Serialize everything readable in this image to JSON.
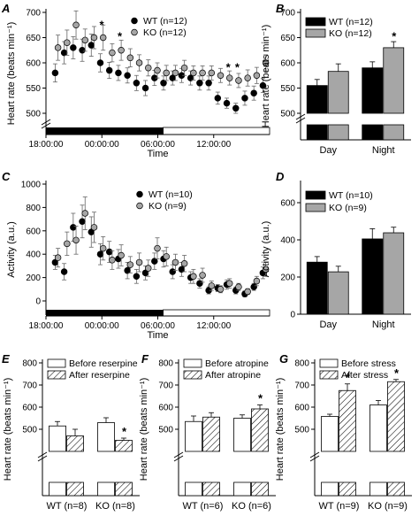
{
  "chart_data": [
    {
      "panel": "A",
      "type": "scatter",
      "xlabel": "Time",
      "ylabel": "Heart rate (beats min⁻¹)",
      "ylim": [
        500,
        700
      ],
      "yticks": [
        "500",
        "550",
        "600",
        "650",
        "700"
      ],
      "xticks": [
        "18:00:00",
        "00:00:00",
        "06:00:00",
        "12:00:00"
      ],
      "series": [
        {
          "name": "WT (n=12)",
          "marker": "black",
          "x": [
            0,
            1,
            2,
            3,
            4,
            5,
            6,
            7,
            8,
            9,
            10,
            11,
            12,
            13,
            14,
            15,
            16,
            17,
            18,
            19,
            20,
            21,
            22,
            23
          ],
          "values": [
            580,
            620,
            630,
            625,
            635,
            600,
            585,
            580,
            575,
            560,
            550,
            570,
            560,
            570,
            575,
            570,
            560,
            560,
            530,
            520,
            510,
            530,
            540,
            555
          ],
          "err": [
            18,
            22,
            22,
            22,
            22,
            18,
            16,
            15,
            15,
            15,
            15,
            15,
            14,
            14,
            14,
            14,
            14,
            14,
            12,
            10,
            10,
            14,
            14,
            14
          ]
        },
        {
          "name": "KO (n=12)",
          "marker": "grey",
          "x": [
            0,
            1,
            2,
            3,
            4,
            5,
            6,
            7,
            8,
            9,
            10,
            11,
            12,
            13,
            14,
            15,
            16,
            17,
            18,
            19,
            20,
            21,
            22,
            23
          ],
          "values": [
            630,
            640,
            675,
            645,
            650,
            650,
            620,
            625,
            610,
            600,
            590,
            585,
            580,
            580,
            590,
            580,
            580,
            580,
            575,
            570,
            565,
            570,
            575,
            600
          ],
          "err": [
            25,
            25,
            28,
            22,
            22,
            25,
            18,
            20,
            18,
            16,
            16,
            15,
            15,
            15,
            15,
            14,
            14,
            14,
            14,
            14,
            14,
            16,
            16,
            16
          ]
        }
      ],
      "annotations": [
        "*",
        "*",
        "*",
        "*"
      ]
    },
    {
      "panel": "B",
      "type": "bar",
      "ylabel": "Heart rate (beats min⁻¹)",
      "categories": [
        "Day",
        "Night"
      ],
      "ylim": [
        500,
        700
      ],
      "yticks": [
        "500",
        "550",
        "600",
        "650",
        "700"
      ],
      "series": [
        {
          "name": "WT (n=12)",
          "color": "#000000",
          "values": [
            555,
            590
          ],
          "err": [
            12,
            12
          ]
        },
        {
          "name": "KO (n=12)",
          "color": "#a6a6a6",
          "values": [
            583,
            630
          ],
          "err": [
            15,
            12
          ]
        }
      ],
      "annotations": [
        "*"
      ]
    },
    {
      "panel": "C",
      "type": "scatter",
      "xlabel": "Time",
      "ylabel": "Activity (a.u.)",
      "ylim": [
        0,
        1000
      ],
      "yticks": [
        "0",
        "200",
        "400",
        "600",
        "800",
        "1000"
      ],
      "xticks": [
        "18:00:00",
        "00:00:00",
        "06:00:00",
        "12:00:00"
      ],
      "series": [
        {
          "name": "WT (n=10)",
          "marker": "black",
          "x": [
            0,
            1,
            2,
            3,
            4,
            5,
            6,
            7,
            8,
            9,
            10,
            11,
            12,
            13,
            14,
            15,
            16,
            17,
            18,
            19,
            20,
            21,
            22,
            23
          ],
          "values": [
            330,
            250,
            630,
            680,
            590,
            400,
            420,
            360,
            260,
            210,
            240,
            340,
            360,
            250,
            270,
            200,
            150,
            90,
            110,
            140,
            90,
            60,
            120,
            240
          ],
          "err": [
            60,
            70,
            120,
            140,
            130,
            90,
            90,
            80,
            70,
            60,
            60,
            70,
            70,
            60,
            60,
            50,
            40,
            30,
            30,
            40,
            30,
            25,
            30,
            50
          ]
        },
        {
          "name": "KO (n=9)",
          "marker": "grey",
          "x": [
            0,
            1,
            2,
            3,
            4,
            5,
            6,
            7,
            8,
            9,
            10,
            11,
            12,
            13,
            14,
            15,
            16,
            17,
            18,
            19,
            20,
            21,
            22,
            23
          ],
          "values": [
            370,
            490,
            520,
            750,
            630,
            450,
            350,
            390,
            310,
            330,
            280,
            450,
            380,
            330,
            320,
            210,
            220,
            130,
            100,
            150,
            120,
            80,
            170,
            270
          ],
          "err": [
            80,
            100,
            120,
            140,
            130,
            100,
            80,
            90,
            70,
            80,
            70,
            90,
            80,
            70,
            70,
            60,
            60,
            40,
            30,
            40,
            30,
            25,
            40,
            60
          ]
        }
      ]
    },
    {
      "panel": "D",
      "type": "bar",
      "ylabel": "Activity (a.u.)",
      "categories": [
        "Day",
        "Night"
      ],
      "ylim": [
        0,
        700
      ],
      "yticks": [
        "0",
        "200",
        "400",
        "600"
      ],
      "series": [
        {
          "name": "WT (n=10)",
          "color": "#000000",
          "values": [
            280,
            405
          ],
          "err": [
            30,
            55
          ]
        },
        {
          "name": "KO (n=9)",
          "color": "#a6a6a6",
          "values": [
            228,
            438
          ],
          "err": [
            30,
            30
          ]
        }
      ]
    },
    {
      "panel": "E",
      "type": "bar",
      "ylabel": "Heart rate (beats min⁻¹)",
      "categories": [
        "WT (n=8)",
        "KO (n=8)"
      ],
      "ylim": [
        400,
        800
      ],
      "yticks": [
        "500",
        "600",
        "700",
        "800"
      ],
      "series": [
        {
          "name": "Before reserpine",
          "fill": "white",
          "values": [
            515,
            530
          ],
          "err": [
            20,
            22
          ]
        },
        {
          "name": "After reserpine",
          "fill": "hatch",
          "values": [
            470,
            450
          ],
          "err": [
            30,
            10
          ]
        }
      ],
      "annotations": [
        "*"
      ]
    },
    {
      "panel": "F",
      "type": "bar",
      "ylabel": "Heart rate (beats min⁻¹)",
      "categories": [
        "WT (n=6)",
        "KO (n=6)"
      ],
      "ylim": [
        400,
        800
      ],
      "yticks": [
        "500",
        "600",
        "700",
        "800"
      ],
      "series": [
        {
          "name": "Before atropine",
          "fill": "white",
          "values": [
            535,
            550
          ],
          "err": [
            25,
            15
          ]
        },
        {
          "name": "After atropine",
          "fill": "hatch",
          "values": [
            555,
            592
          ],
          "err": [
            20,
            18
          ]
        }
      ],
      "annotations": [
        "*"
      ]
    },
    {
      "panel": "G",
      "type": "bar",
      "ylabel": "Heart rate (beats min⁻¹)",
      "categories": [
        "WT (n=9)",
        "KO (n=9)"
      ],
      "ylim": [
        400,
        800
      ],
      "yticks": [
        "500",
        "600",
        "700",
        "800"
      ],
      "series": [
        {
          "name": "Before stress",
          "fill": "white",
          "values": [
            558,
            610
          ],
          "err": [
            10,
            20
          ]
        },
        {
          "name": "After stress",
          "fill": "hatch",
          "values": [
            675,
            715
          ],
          "err": [
            30,
            10
          ]
        }
      ],
      "annotations": [
        "*",
        "*"
      ]
    }
  ]
}
